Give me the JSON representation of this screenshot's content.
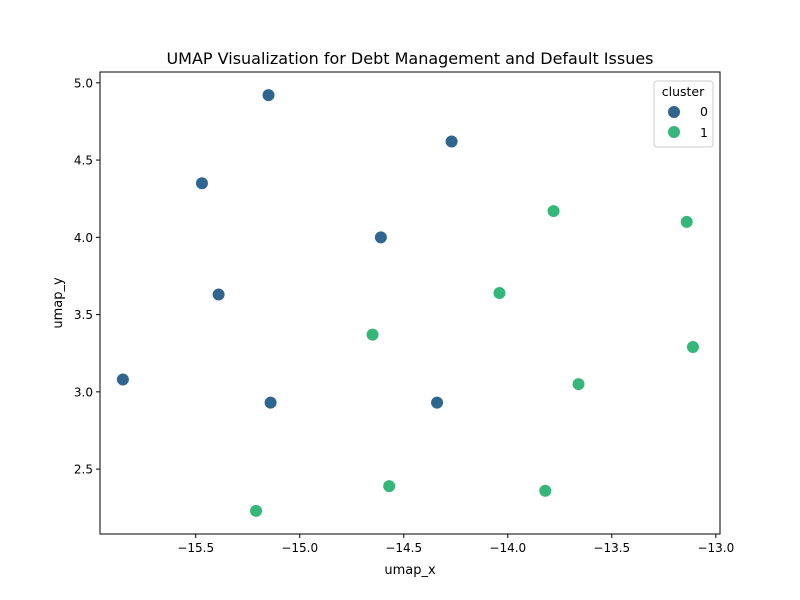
{
  "chart_data": {
    "type": "scatter",
    "title": "UMAP Visualization for Debt Management and Default Issues",
    "xlabel": "umap_x",
    "ylabel": "umap_y",
    "xlim": [
      -15.96,
      -12.98
    ],
    "ylim": [
      2.08,
      5.07
    ],
    "x_ticks": [
      -15.5,
      -15.0,
      -14.5,
      -14.0,
      -13.5,
      -13.0
    ],
    "x_tick_labels": [
      "−15.5",
      "−15.0",
      "−14.5",
      "−14.0",
      "−13.5",
      "−13.0"
    ],
    "y_ticks": [
      2.5,
      3.0,
      3.5,
      4.0,
      4.5,
      5.0
    ],
    "y_tick_labels": [
      "2.5",
      "3.0",
      "3.5",
      "4.0",
      "4.5",
      "5.0"
    ],
    "grid": false,
    "legend": {
      "title": "cluster",
      "placement": "top-right"
    },
    "series": [
      {
        "name": "0",
        "color": "#2f6690",
        "points": [
          [
            -15.15,
            4.92
          ],
          [
            -14.27,
            4.62
          ],
          [
            -15.47,
            4.35
          ],
          [
            -14.61,
            4.0
          ],
          [
            -15.39,
            3.63
          ],
          [
            -15.85,
            3.08
          ],
          [
            -15.14,
            2.93
          ],
          [
            -14.34,
            2.93
          ]
        ]
      },
      {
        "name": "1",
        "color": "#35b779",
        "points": [
          [
            -13.78,
            4.17
          ],
          [
            -13.14,
            4.1
          ],
          [
            -14.04,
            3.64
          ],
          [
            -14.65,
            3.37
          ],
          [
            -13.11,
            3.29
          ],
          [
            -13.66,
            3.05
          ],
          [
            -14.57,
            2.39
          ],
          [
            -13.82,
            2.36
          ],
          [
            -15.21,
            2.23
          ]
        ]
      }
    ]
  }
}
